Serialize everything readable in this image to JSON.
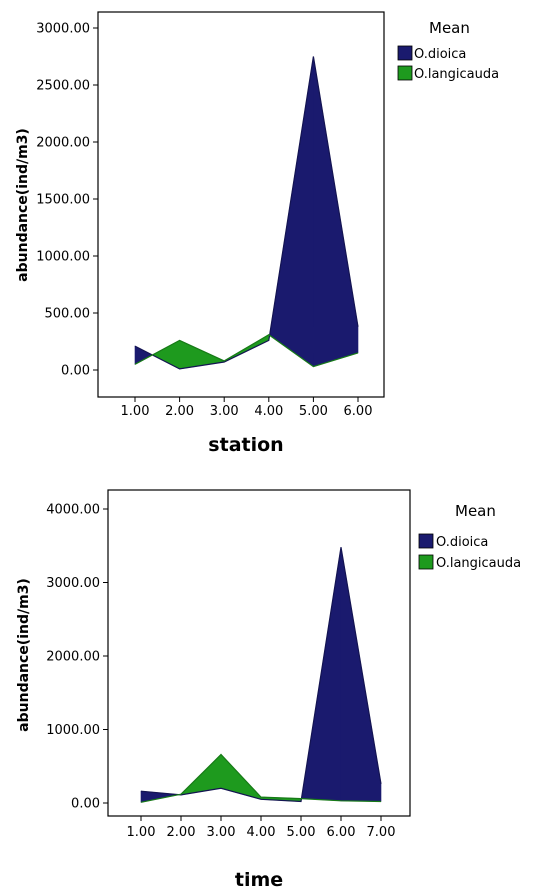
{
  "chart_data": [
    {
      "type": "area",
      "xlabel": "station",
      "ylabel": "abundance(ind/m3)",
      "x": [
        "1.00",
        "2.00",
        "3.00",
        "4.00",
        "5.00",
        "6.00"
      ],
      "y_ticks": [
        "0.00",
        "500.00",
        "1000.00",
        "1500.00",
        "2000.00",
        "2500.00",
        "3000.00"
      ],
      "ylim": [
        0,
        3000
      ],
      "legend": {
        "title": "Mean",
        "placement": "right"
      },
      "series": [
        {
          "name": "O.dioica",
          "color": "#1a1a6e",
          "values": [
            210,
            10,
            70,
            260,
            2750,
            380
          ]
        },
        {
          "name": "O.langicauda",
          "color": "#1e9a1e",
          "values": [
            50,
            260,
            80,
            310,
            30,
            150
          ]
        }
      ]
    },
    {
      "type": "area",
      "xlabel": "time",
      "ylabel": "abundance(ind/m3)",
      "x": [
        "1.00",
        "2.00",
        "3.00",
        "4.00",
        "5.00",
        "6.00",
        "7.00"
      ],
      "y_ticks": [
        "0.00",
        "1000.00",
        "2000.00",
        "3000.00",
        "4000.00"
      ],
      "ylim": [
        0,
        4000
      ],
      "legend": {
        "title": "Mean",
        "placement": "right"
      },
      "series": [
        {
          "name": "O.dioica",
          "color": "#1a1a6e",
          "values": [
            160,
            110,
            200,
            50,
            20,
            3480,
            260
          ]
        },
        {
          "name": "O.langicauda",
          "color": "#1e9a1e",
          "values": [
            10,
            120,
            660,
            80,
            60,
            30,
            20
          ]
        }
      ]
    }
  ]
}
